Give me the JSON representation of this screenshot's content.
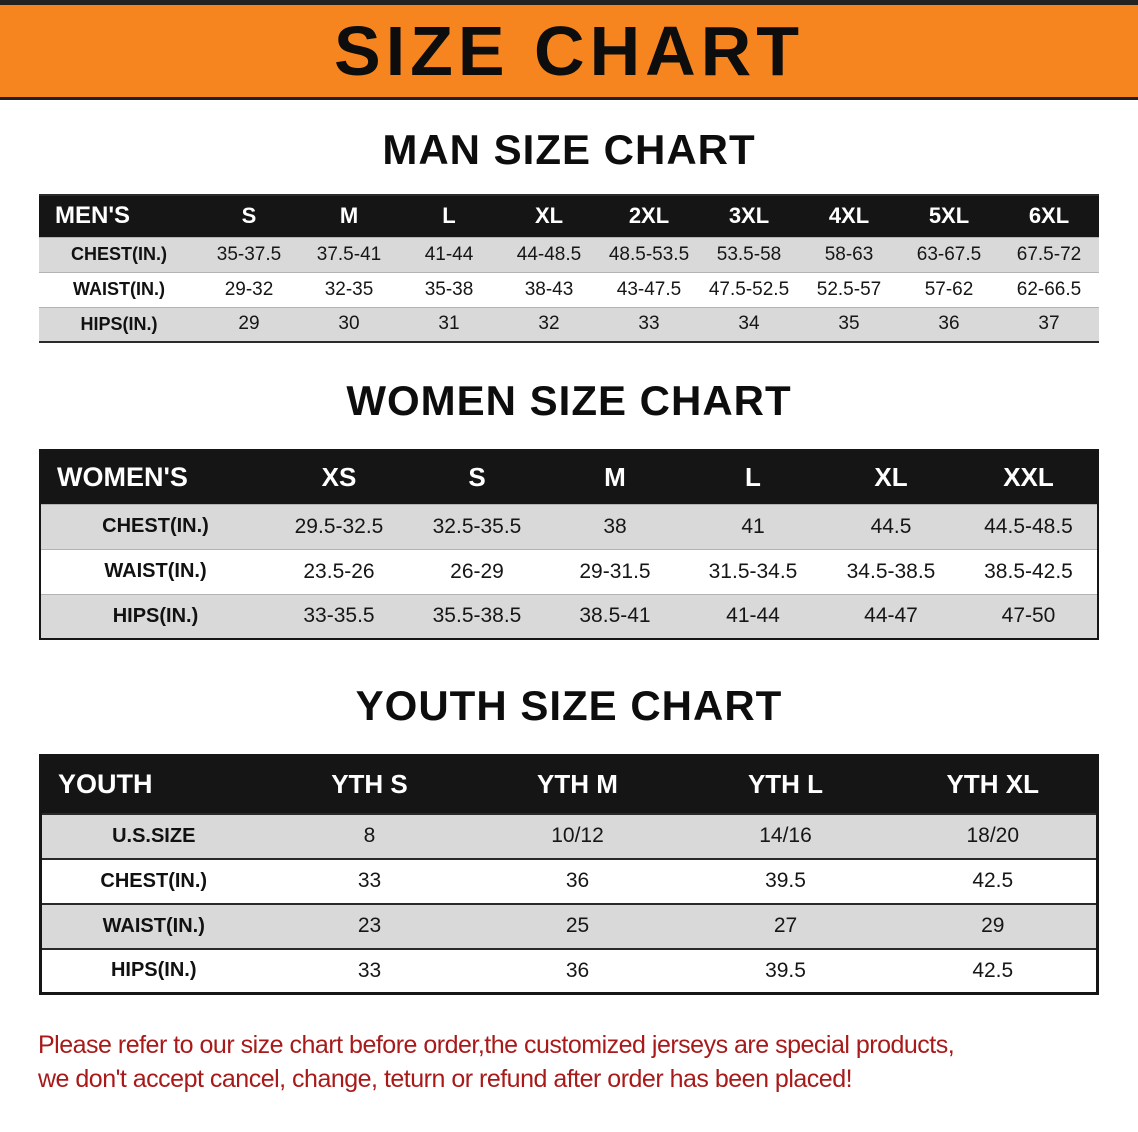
{
  "colors": {
    "banner_bg": "#F6851F",
    "table_header_bg": "#151515",
    "row_gray": "#D9D9D9",
    "footer_red": "#A81A1A"
  },
  "banner": {
    "title": "SIZE CHART"
  },
  "sections": [
    {
      "heading": "MAN SIZE CHART",
      "table": {
        "name": "MEN'S",
        "columns": [
          "S",
          "M",
          "L",
          "XL",
          "2XL",
          "3XL",
          "4XL",
          "5XL",
          "6XL"
        ],
        "rows": [
          {
            "label": "CHEST(IN.)",
            "values": [
              "35-37.5",
              "37.5-41",
              "41-44",
              "44-48.5",
              "48.5-53.5",
              "53.5-58",
              "58-63",
              "63-67.5",
              "67.5-72"
            ]
          },
          {
            "label": "WAIST(IN.)",
            "values": [
              "29-32",
              "32-35",
              "35-38",
              "38-43",
              "43-47.5",
              "47.5-52.5",
              "52.5-57",
              "57-62",
              "62-66.5"
            ]
          },
          {
            "label": "HIPS(IN.)",
            "values": [
              "29",
              "30",
              "31",
              "32",
              "33",
              "34",
              "35",
              "36",
              "37"
            ]
          }
        ]
      }
    },
    {
      "heading": "WOMEN SIZE CHART",
      "table": {
        "name": "WOMEN'S",
        "columns": [
          "XS",
          "S",
          "M",
          "L",
          "XL",
          "XXL"
        ],
        "rows": [
          {
            "label": "CHEST(IN.)",
            "values": [
              "29.5-32.5",
              "32.5-35.5",
              "38",
              "41",
              "44.5",
              "44.5-48.5"
            ]
          },
          {
            "label": "WAIST(IN.)",
            "values": [
              "23.5-26",
              "26-29",
              "29-31.5",
              "31.5-34.5",
              "34.5-38.5",
              "38.5-42.5"
            ]
          },
          {
            "label": "HIPS(IN.)",
            "values": [
              "33-35.5",
              "35.5-38.5",
              "38.5-41",
              "41-44",
              "44-47",
              "47-50"
            ]
          }
        ]
      }
    },
    {
      "heading": "YOUTH SIZE CHART",
      "table": {
        "name": "YOUTH",
        "columns": [
          "YTH S",
          "YTH M",
          "YTH L",
          "YTH XL"
        ],
        "rows": [
          {
            "label": "U.S.SIZE",
            "values": [
              "8",
              "10/12",
              "14/16",
              "18/20"
            ]
          },
          {
            "label": "CHEST(IN.)",
            "values": [
              "33",
              "36",
              "39.5",
              "42.5"
            ]
          },
          {
            "label": "WAIST(IN.)",
            "values": [
              "23",
              "25",
              "27",
              "29"
            ]
          },
          {
            "label": "HIPS(IN.)",
            "values": [
              "33",
              "36",
              "39.5",
              "42.5"
            ]
          }
        ]
      }
    }
  ],
  "footer": {
    "line1": "Please refer to our size chart before order,the customized jerseys are special products,",
    "line2": "we don't accept cancel, change, teturn or refund after order has been placed!"
  }
}
